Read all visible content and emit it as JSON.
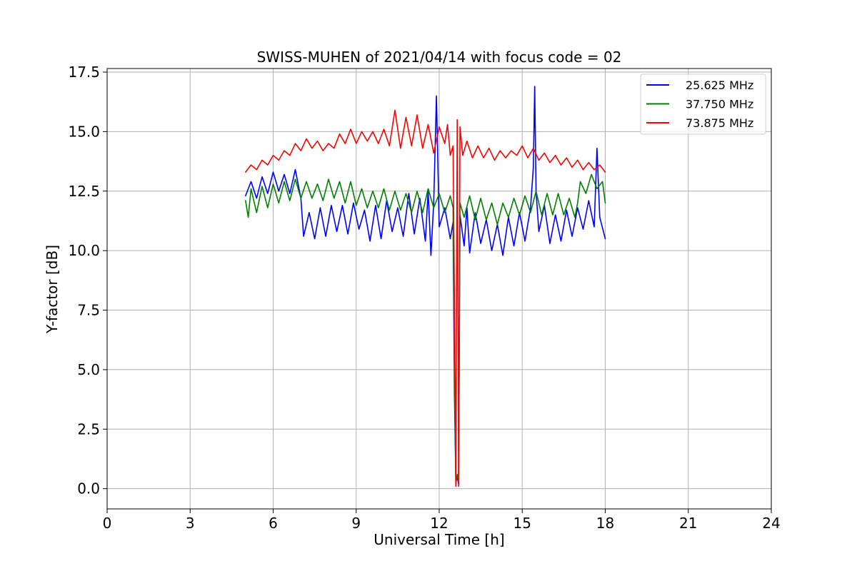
{
  "chart_data": {
    "type": "line",
    "title": "SWISS-MUHEN of 2021/04/14 with focus code = 02",
    "xlabel": "Universal Time [h]",
    "ylabel": "Y-factor [dB]",
    "xlim": [
      0,
      24
    ],
    "ylim": [
      -0.85,
      17.65
    ],
    "xticks": [
      0,
      3,
      6,
      9,
      12,
      15,
      18,
      21,
      24
    ],
    "xtick_labels": [
      "0",
      "3",
      "6",
      "9",
      "12",
      "15",
      "18",
      "21",
      "24"
    ],
    "yticks": [
      0.0,
      2.5,
      5.0,
      7.5,
      10.0,
      12.5,
      15.0,
      17.5
    ],
    "ytick_labels": [
      "0.0",
      "2.5",
      "5.0",
      "7.5",
      "10.0",
      "12.5",
      "15.0",
      "17.5"
    ],
    "grid": true,
    "legend_position": "top-right",
    "series": [
      {
        "name": "25.625 MHz",
        "color": "#0000ff",
        "points": [
          [
            5.0,
            12.3
          ],
          [
            5.2,
            12.9
          ],
          [
            5.4,
            12.2
          ],
          [
            5.6,
            13.1
          ],
          [
            5.8,
            12.4
          ],
          [
            6.0,
            13.3
          ],
          [
            6.2,
            12.5
          ],
          [
            6.4,
            13.2
          ],
          [
            6.6,
            12.4
          ],
          [
            6.8,
            13.4
          ],
          [
            7.0,
            12.2
          ],
          [
            7.1,
            10.6
          ],
          [
            7.3,
            11.6
          ],
          [
            7.5,
            10.5
          ],
          [
            7.7,
            11.8
          ],
          [
            7.9,
            10.6
          ],
          [
            8.1,
            11.9
          ],
          [
            8.3,
            10.8
          ],
          [
            8.5,
            11.9
          ],
          [
            8.7,
            10.7
          ],
          [
            8.9,
            12.0
          ],
          [
            9.1,
            10.9
          ],
          [
            9.3,
            11.7
          ],
          [
            9.5,
            10.4
          ],
          [
            9.7,
            11.9
          ],
          [
            9.9,
            10.5
          ],
          [
            10.1,
            12.1
          ],
          [
            10.3,
            10.8
          ],
          [
            10.5,
            11.8
          ],
          [
            10.7,
            10.6
          ],
          [
            10.9,
            12.4
          ],
          [
            11.1,
            10.7
          ],
          [
            11.3,
            12.2
          ],
          [
            11.5,
            10.4
          ],
          [
            11.6,
            12.5
          ],
          [
            11.7,
            9.8
          ],
          [
            11.8,
            12.0
          ],
          [
            11.9,
            16.5
          ],
          [
            12.0,
            11.0
          ],
          [
            12.2,
            11.8
          ],
          [
            12.4,
            10.5
          ],
          [
            12.5,
            11.2
          ],
          [
            12.55,
            4.0
          ],
          [
            12.6,
            0.3
          ],
          [
            12.65,
            0.5
          ],
          [
            12.7,
            0.2
          ],
          [
            12.75,
            11.5
          ],
          [
            12.9,
            10.2
          ],
          [
            13.0,
            11.8
          ],
          [
            13.1,
            9.9
          ],
          [
            13.3,
            11.6
          ],
          [
            13.5,
            10.3
          ],
          [
            13.7,
            11.3
          ],
          [
            13.9,
            10.0
          ],
          [
            14.1,
            11.1
          ],
          [
            14.3,
            9.8
          ],
          [
            14.5,
            11.4
          ],
          [
            14.7,
            10.2
          ],
          [
            14.9,
            11.6
          ],
          [
            15.1,
            10.4
          ],
          [
            15.3,
            11.8
          ],
          [
            15.4,
            13.5
          ],
          [
            15.45,
            16.9
          ],
          [
            15.5,
            12.5
          ],
          [
            15.6,
            10.8
          ],
          [
            15.8,
            11.9
          ],
          [
            16.0,
            10.3
          ],
          [
            16.2,
            11.5
          ],
          [
            16.4,
            10.4
          ],
          [
            16.6,
            11.7
          ],
          [
            16.8,
            10.6
          ],
          [
            17.0,
            11.8
          ],
          [
            17.2,
            10.9
          ],
          [
            17.4,
            12.1
          ],
          [
            17.6,
            11.0
          ],
          [
            17.7,
            14.3
          ],
          [
            17.8,
            11.4
          ],
          [
            18.0,
            10.5
          ]
        ]
      },
      {
        "name": "37.750 MHz",
        "color": "#008000",
        "points": [
          [
            5.0,
            12.1
          ],
          [
            5.1,
            11.4
          ],
          [
            5.2,
            12.6
          ],
          [
            5.4,
            11.6
          ],
          [
            5.6,
            12.7
          ],
          [
            5.8,
            11.8
          ],
          [
            6.0,
            12.8
          ],
          [
            6.2,
            12.0
          ],
          [
            6.4,
            12.9
          ],
          [
            6.6,
            12.1
          ],
          [
            6.8,
            13.0
          ],
          [
            7.0,
            12.2
          ],
          [
            7.2,
            12.9
          ],
          [
            7.4,
            12.2
          ],
          [
            7.6,
            12.8
          ],
          [
            7.8,
            12.1
          ],
          [
            8.0,
            13.0
          ],
          [
            8.2,
            12.2
          ],
          [
            8.4,
            12.9
          ],
          [
            8.6,
            12.0
          ],
          [
            8.8,
            12.9
          ],
          [
            9.0,
            11.9
          ],
          [
            9.2,
            12.6
          ],
          [
            9.4,
            11.8
          ],
          [
            9.6,
            12.5
          ],
          [
            9.8,
            11.8
          ],
          [
            10.0,
            12.6
          ],
          [
            10.2,
            11.7
          ],
          [
            10.4,
            12.5
          ],
          [
            10.6,
            11.7
          ],
          [
            10.8,
            12.4
          ],
          [
            11.0,
            11.6
          ],
          [
            11.2,
            12.5
          ],
          [
            11.4,
            11.6
          ],
          [
            11.6,
            12.6
          ],
          [
            11.8,
            11.8
          ],
          [
            12.0,
            12.4
          ],
          [
            12.2,
            11.6
          ],
          [
            12.4,
            12.3
          ],
          [
            12.5,
            11.8
          ],
          [
            12.55,
            5.0
          ],
          [
            12.6,
            0.2
          ],
          [
            12.65,
            0.6
          ],
          [
            12.7,
            0.3
          ],
          [
            12.75,
            12.0
          ],
          [
            12.9,
            11.4
          ],
          [
            13.1,
            12.3
          ],
          [
            13.3,
            11.3
          ],
          [
            13.5,
            12.2
          ],
          [
            13.7,
            11.3
          ],
          [
            13.9,
            12.0
          ],
          [
            14.1,
            11.1
          ],
          [
            14.3,
            12.0
          ],
          [
            14.5,
            11.4
          ],
          [
            14.7,
            12.2
          ],
          [
            14.9,
            11.5
          ],
          [
            15.1,
            12.3
          ],
          [
            15.3,
            11.6
          ],
          [
            15.5,
            12.5
          ],
          [
            15.7,
            11.5
          ],
          [
            15.9,
            12.4
          ],
          [
            16.1,
            11.5
          ],
          [
            16.3,
            12.4
          ],
          [
            16.5,
            11.5
          ],
          [
            16.7,
            12.2
          ],
          [
            16.9,
            11.4
          ],
          [
            17.0,
            12.0
          ],
          [
            17.1,
            12.9
          ],
          [
            17.3,
            12.4
          ],
          [
            17.5,
            13.2
          ],
          [
            17.7,
            12.6
          ],
          [
            17.9,
            12.9
          ],
          [
            18.0,
            12.0
          ]
        ]
      },
      {
        "name": "73.875 MHz",
        "color": "#ff0000",
        "points": [
          [
            5.0,
            13.3
          ],
          [
            5.2,
            13.6
          ],
          [
            5.4,
            13.4
          ],
          [
            5.6,
            13.8
          ],
          [
            5.8,
            13.6
          ],
          [
            6.0,
            14.0
          ],
          [
            6.2,
            13.8
          ],
          [
            6.4,
            14.2
          ],
          [
            6.6,
            14.0
          ],
          [
            6.8,
            14.5
          ],
          [
            7.0,
            14.2
          ],
          [
            7.2,
            14.7
          ],
          [
            7.4,
            14.3
          ],
          [
            7.6,
            14.6
          ],
          [
            7.8,
            14.2
          ],
          [
            8.0,
            14.5
          ],
          [
            8.2,
            14.3
          ],
          [
            8.4,
            14.9
          ],
          [
            8.6,
            14.5
          ],
          [
            8.8,
            15.1
          ],
          [
            9.0,
            14.5
          ],
          [
            9.2,
            15.0
          ],
          [
            9.4,
            14.6
          ],
          [
            9.6,
            15.0
          ],
          [
            9.8,
            14.5
          ],
          [
            10.0,
            15.1
          ],
          [
            10.2,
            14.4
          ],
          [
            10.4,
            15.9
          ],
          [
            10.6,
            14.3
          ],
          [
            10.8,
            15.6
          ],
          [
            11.0,
            14.4
          ],
          [
            11.2,
            15.7
          ],
          [
            11.4,
            14.3
          ],
          [
            11.6,
            15.3
          ],
          [
            11.8,
            14.1
          ],
          [
            12.0,
            15.2
          ],
          [
            12.2,
            14.5
          ],
          [
            12.3,
            15.3
          ],
          [
            12.4,
            14.0
          ],
          [
            12.5,
            14.4
          ],
          [
            12.55,
            8.0
          ],
          [
            12.6,
            0.1
          ],
          [
            12.65,
            15.5
          ],
          [
            12.7,
            0.1
          ],
          [
            12.75,
            15.2
          ],
          [
            12.85,
            14.0
          ],
          [
            13.0,
            14.6
          ],
          [
            13.2,
            13.9
          ],
          [
            13.4,
            14.4
          ],
          [
            13.6,
            13.9
          ],
          [
            13.8,
            14.3
          ],
          [
            14.0,
            13.8
          ],
          [
            14.2,
            14.2
          ],
          [
            14.4,
            13.9
          ],
          [
            14.6,
            14.2
          ],
          [
            14.8,
            14.0
          ],
          [
            15.0,
            14.4
          ],
          [
            15.2,
            13.9
          ],
          [
            15.4,
            14.3
          ],
          [
            15.6,
            13.8
          ],
          [
            15.8,
            14.1
          ],
          [
            16.0,
            13.7
          ],
          [
            16.2,
            14.0
          ],
          [
            16.4,
            13.6
          ],
          [
            16.6,
            13.9
          ],
          [
            16.8,
            13.5
          ],
          [
            17.0,
            13.8
          ],
          [
            17.2,
            13.4
          ],
          [
            17.4,
            13.7
          ],
          [
            17.6,
            13.4
          ],
          [
            17.8,
            13.6
          ],
          [
            18.0,
            13.3
          ]
        ]
      }
    ]
  }
}
